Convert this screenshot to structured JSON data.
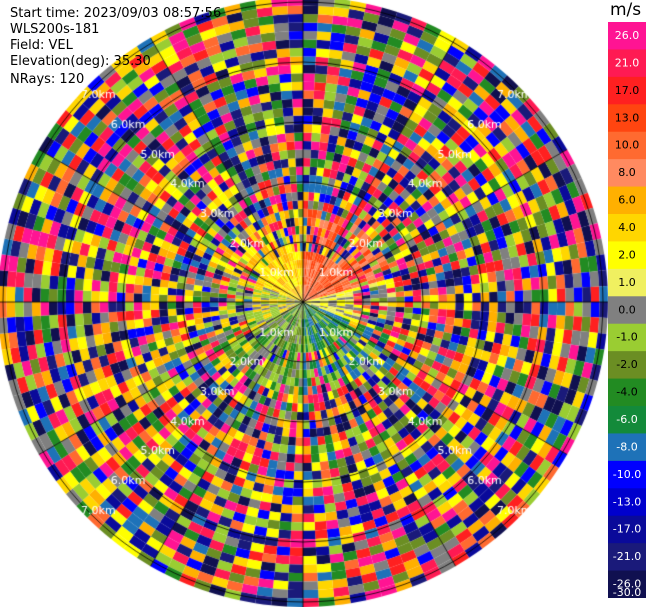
{
  "header": {
    "start_time": "Start time: 2023/09/03 08:57:56",
    "instrument": "WLS200s-181",
    "field": "Field: VEL",
    "elevation": "Elevation(deg): 35.30",
    "nrays": "NRays: 120"
  },
  "colorbar": {
    "unit": "m/s",
    "levels": [
      "26.0",
      "21.0",
      "17.0",
      "13.0",
      "10.0",
      "8.0",
      "6.0",
      "4.0",
      "2.0",
      "1.0",
      "0.0",
      "-1.0",
      "-2.0",
      "-4.0",
      "-6.0",
      "-8.0",
      "-10.0",
      "-13.0",
      "-17.0",
      "-21.0",
      "-26.0",
      "-30.0"
    ],
    "colors": [
      "#ff1493",
      "#ff1a53",
      "#ff2020",
      "#ff4510",
      "#ff6a30",
      "#ff8a60",
      "#ffb000",
      "#ffd600",
      "#ffff00",
      "#f0f060",
      "#808080",
      "#9acd32",
      "#6b8e23",
      "#228b22",
      "#138a3a",
      "#1e72b8",
      "#0000ff",
      "#0000cd",
      "#0a0a9a",
      "#1a1a7a",
      "#101050"
    ]
  },
  "range_rings": {
    "labels": [
      "1.0km",
      "2.0km",
      "3.0km",
      "4.0km",
      "5.0km",
      "6.0km",
      "7.0km"
    ]
  }
}
